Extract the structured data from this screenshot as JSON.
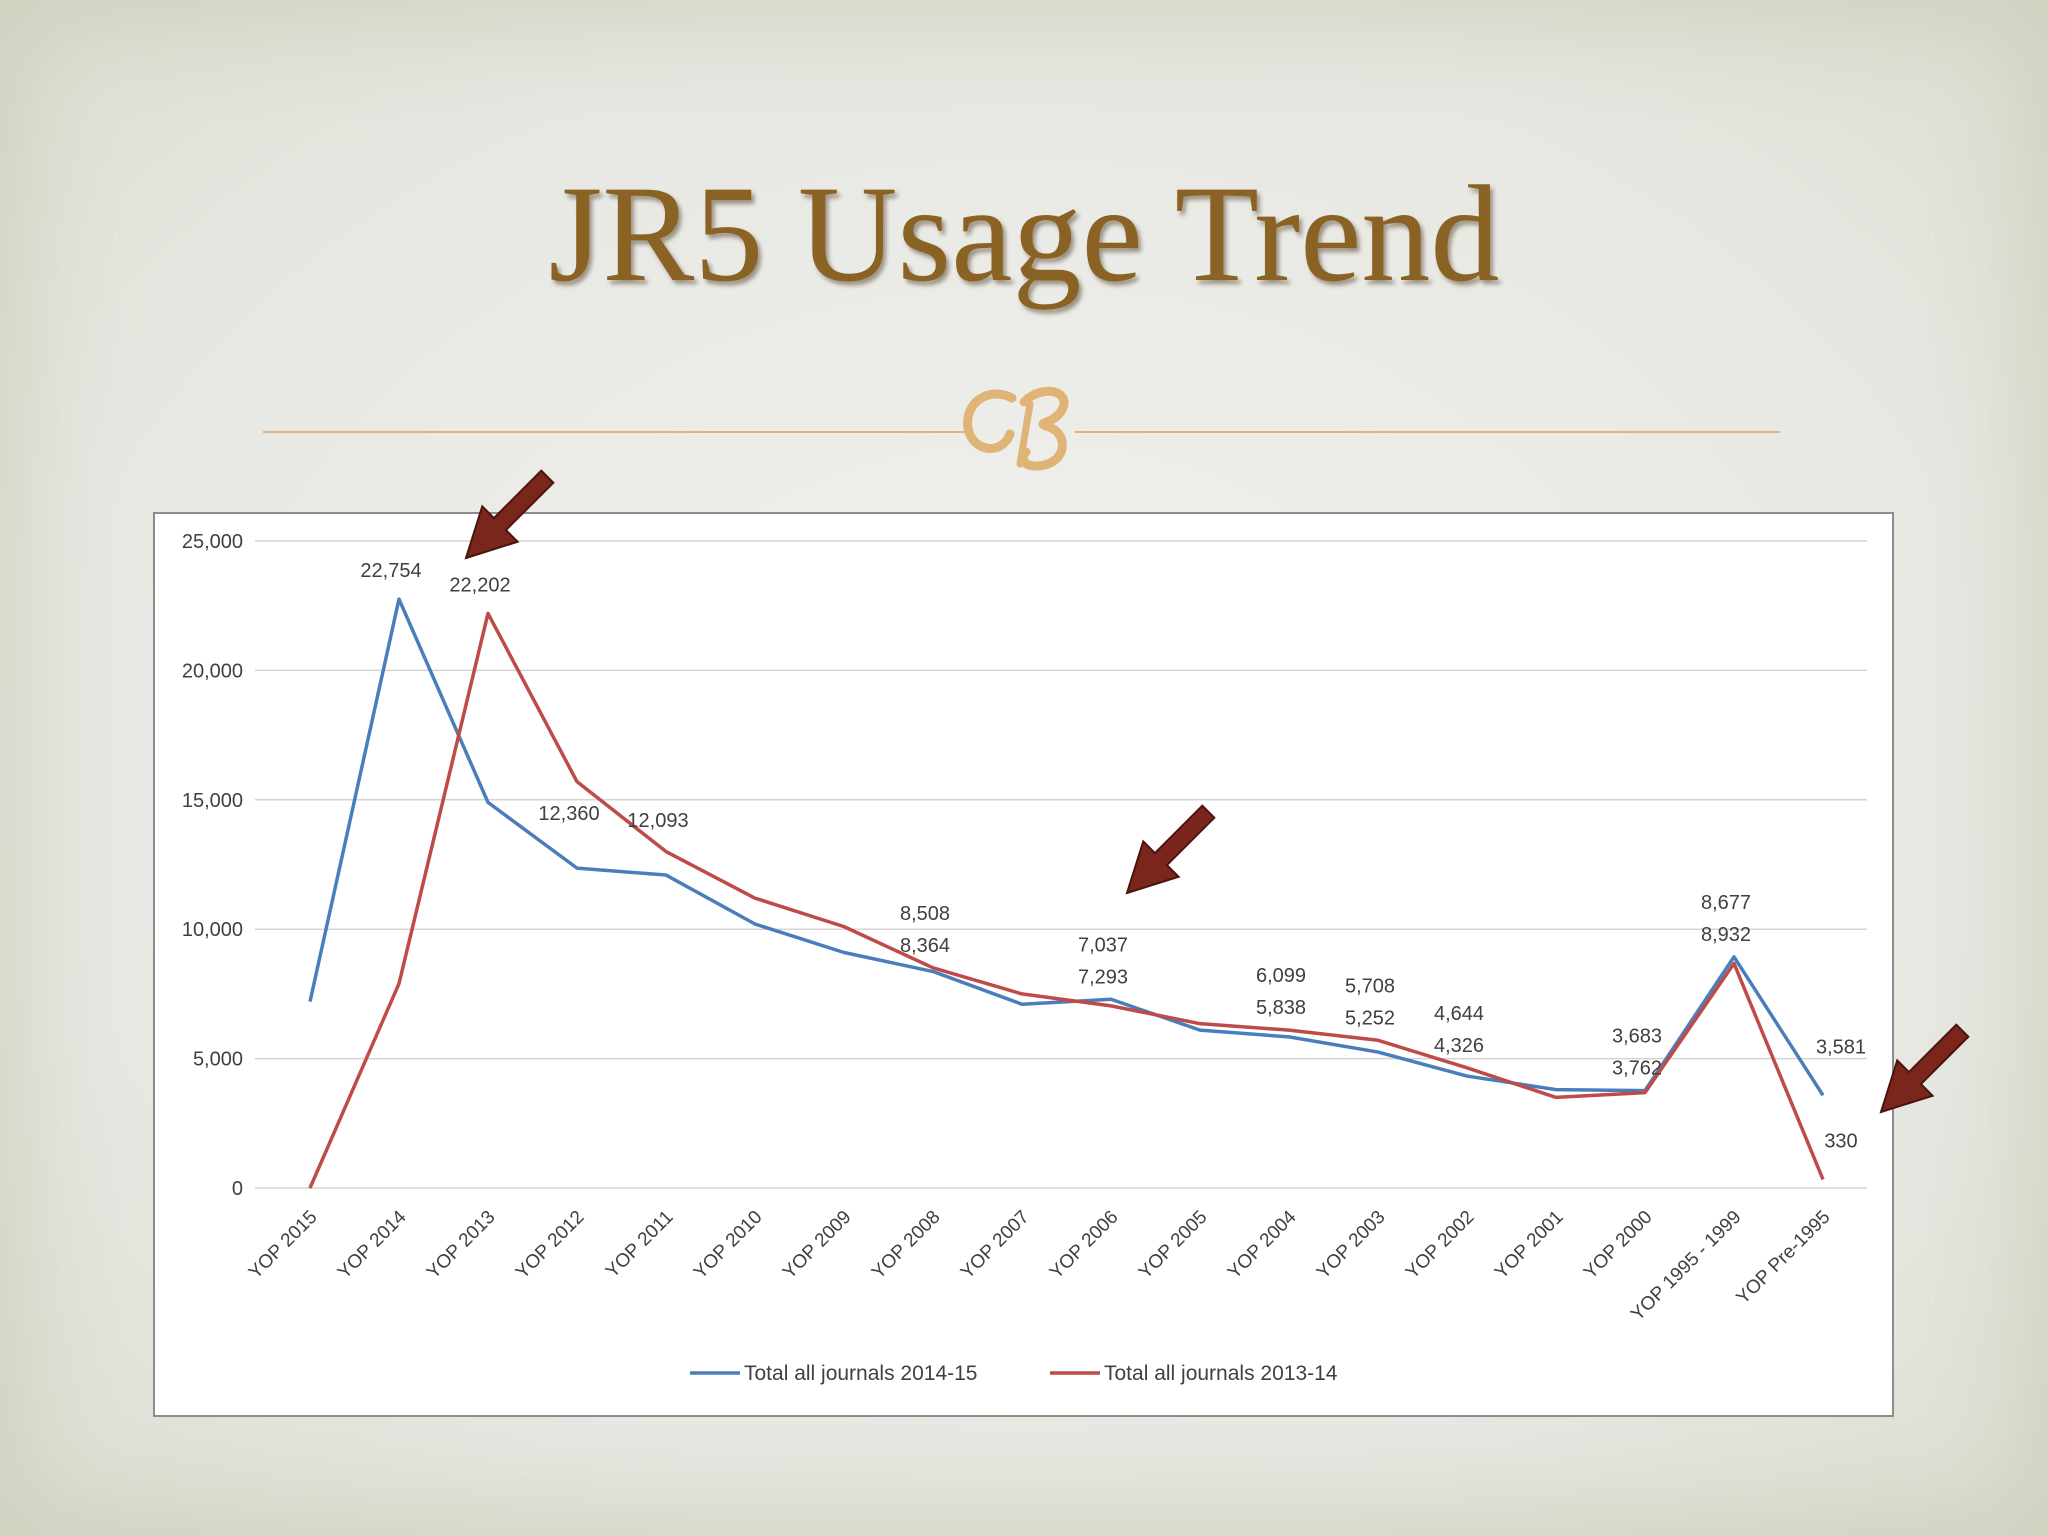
{
  "title": "JR5 Usage Trend",
  "colors": {
    "title": "#8a6224",
    "accent": "#e0b377",
    "series_2014_15": "#4a7ebb",
    "series_2013_14": "#be4b48",
    "arrow": "#7b261c"
  },
  "chart_data": {
    "type": "line",
    "title": "",
    "xlabel": "",
    "ylabel": "",
    "ylim": [
      0,
      25000
    ],
    "yticks": [
      0,
      5000,
      10000,
      15000,
      20000,
      25000
    ],
    "ytick_labels": [
      "0",
      "5,000",
      "10,000",
      "15,000",
      "20,000",
      "25,000"
    ],
    "grid": true,
    "legend_position": "bottom",
    "categories": [
      "YOP 2015",
      "YOP 2014",
      "YOP 2013",
      "YOP 2012",
      "YOP 2011",
      "YOP 2010",
      "YOP 2009",
      "YOP 2008",
      "YOP 2007",
      "YOP 2006",
      "YOP 2005",
      "YOP 2004",
      "YOP 2003",
      "YOP 2002",
      "YOP 2001",
      "YOP 2000",
      "YOP 1995 - 1999",
      "YOP Pre-1995"
    ],
    "series": [
      {
        "name": "Total all journals 2014-15",
        "color": "#4a7ebb",
        "values": [
          7200,
          22754,
          14900,
          12360,
          12093,
          10200,
          9100,
          8364,
          7100,
          7293,
          6100,
          5838,
          5252,
          4326,
          3800,
          3762,
          8932,
          3581
        ]
      },
      {
        "name": "Total all journals 2013-14",
        "color": "#be4b48",
        "values": [
          0,
          7900,
          22202,
          15700,
          13000,
          11200,
          10100,
          8508,
          7500,
          7037,
          6350,
          6099,
          5708,
          4644,
          3500,
          3683,
          8677,
          330
        ]
      }
    ],
    "data_labels": [
      {
        "category": "YOP 2014",
        "value": 22754,
        "text": "22,754"
      },
      {
        "category": "YOP 2013",
        "value": 22202,
        "text": "22,202"
      },
      {
        "category": "YOP 2012",
        "value": 12360,
        "text": "12,360"
      },
      {
        "category": "YOP 2011",
        "value": 12093,
        "text": "12,093"
      },
      {
        "category": "YOP 2008",
        "value": 8508,
        "text": "8,508"
      },
      {
        "category": "YOP 2008",
        "value": 8364,
        "text": "8,364"
      },
      {
        "category": "YOP 2006",
        "value": 7037,
        "text": "7,037"
      },
      {
        "category": "YOP 2006",
        "value": 7293,
        "text": "7,293"
      },
      {
        "category": "YOP 2004",
        "value": 6099,
        "text": "6,099"
      },
      {
        "category": "YOP 2004",
        "value": 5838,
        "text": "5,838"
      },
      {
        "category": "YOP 2003",
        "value": 5708,
        "text": "5,708"
      },
      {
        "category": "YOP 2003",
        "value": 5252,
        "text": "5,252"
      },
      {
        "category": "YOP 2002",
        "value": 4644,
        "text": "4,644"
      },
      {
        "category": "YOP 2002",
        "value": 4326,
        "text": "4,326"
      },
      {
        "category": "YOP 2000",
        "value": 3683,
        "text": "3,683"
      },
      {
        "category": "YOP 2000",
        "value": 3762,
        "text": "3,762"
      },
      {
        "category": "YOP 1995 - 1999",
        "value": 8677,
        "text": "8,677"
      },
      {
        "category": "YOP 1995 - 1999",
        "value": 8932,
        "text": "8,932"
      },
      {
        "category": "YOP Pre-1995",
        "value": 3581,
        "text": "3,581"
      },
      {
        "category": "YOP Pre-1995",
        "value": 330,
        "text": "330"
      }
    ],
    "annotations": [
      {
        "type": "arrow",
        "target_category": "YOP 2013",
        "target_value": 22202
      },
      {
        "type": "arrow",
        "target_category": "YOP 2006",
        "target_value": 7037
      },
      {
        "type": "arrow",
        "target_category": "YOP Pre-1995",
        "target_value": 330
      }
    ]
  }
}
